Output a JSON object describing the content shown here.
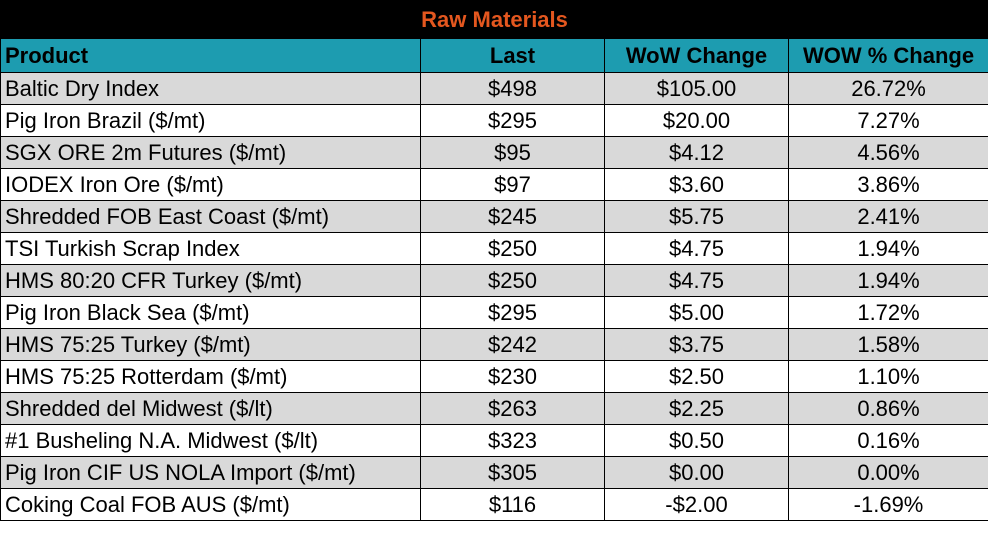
{
  "table": {
    "title": "Raw Materials",
    "headers": {
      "product": "Product",
      "last": "Last",
      "wow_change": "WoW Change",
      "wow_pct_change": "WOW % Change"
    },
    "rows": [
      {
        "product": "Baltic Dry Index",
        "last": "$498",
        "wow": "$105.00",
        "pct": "26.72%"
      },
      {
        "product": "Pig Iron Brazil ($/mt)",
        "last": "$295",
        "wow": "$20.00",
        "pct": "7.27%"
      },
      {
        "product": "SGX ORE 2m Futures ($/mt)",
        "last": "$95",
        "wow": "$4.12",
        "pct": "4.56%"
      },
      {
        "product": "IODEX  Iron Ore ($/mt)",
        "last": "$97",
        "wow": "$3.60",
        "pct": "3.86%"
      },
      {
        "product": "Shredded FOB East Coast ($/mt)",
        "last": "$245",
        "wow": "$5.75",
        "pct": "2.41%"
      },
      {
        "product": "TSI Turkish Scrap Index",
        "last": "$250",
        "wow": "$4.75",
        "pct": "1.94%"
      },
      {
        "product": "HMS 80:20 CFR Turkey ($/mt)",
        "last": "$250",
        "wow": "$4.75",
        "pct": "1.94%"
      },
      {
        "product": "Pig Iron Black Sea ($/mt)",
        "last": "$295",
        "wow": "$5.00",
        "pct": "1.72%"
      },
      {
        "product": "HMS 75:25 Turkey ($/mt)",
        "last": "$242",
        "wow": "$3.75",
        "pct": "1.58%"
      },
      {
        "product": "HMS 75:25 Rotterdam ($/mt)",
        "last": "$230",
        "wow": "$2.50",
        "pct": "1.10%"
      },
      {
        "product": "Shredded del  Midwest ($/lt)",
        "last": "$263",
        "wow": "$2.25",
        "pct": "0.86%"
      },
      {
        "product": "#1 Busheling N.A. Midwest ($/lt)",
        "last": "$323",
        "wow": "$0.50",
        "pct": "0.16%"
      },
      {
        "product": "Pig Iron CIF US NOLA Import ($/mt)",
        "last": "$305",
        "wow": "$0.00",
        "pct": "0.00%"
      },
      {
        "product": "Coking Coal FOB AUS ($/mt)",
        "last": "$116",
        "wow": "-$2.00",
        "pct": "-1.69%"
      }
    ]
  },
  "colors": {
    "title_bg": "#000000",
    "title_text": "#e4571f",
    "header_bg": "#1d9cb0",
    "row_shaded": "#d9d9d9",
    "row_plain": "#ffffff"
  }
}
